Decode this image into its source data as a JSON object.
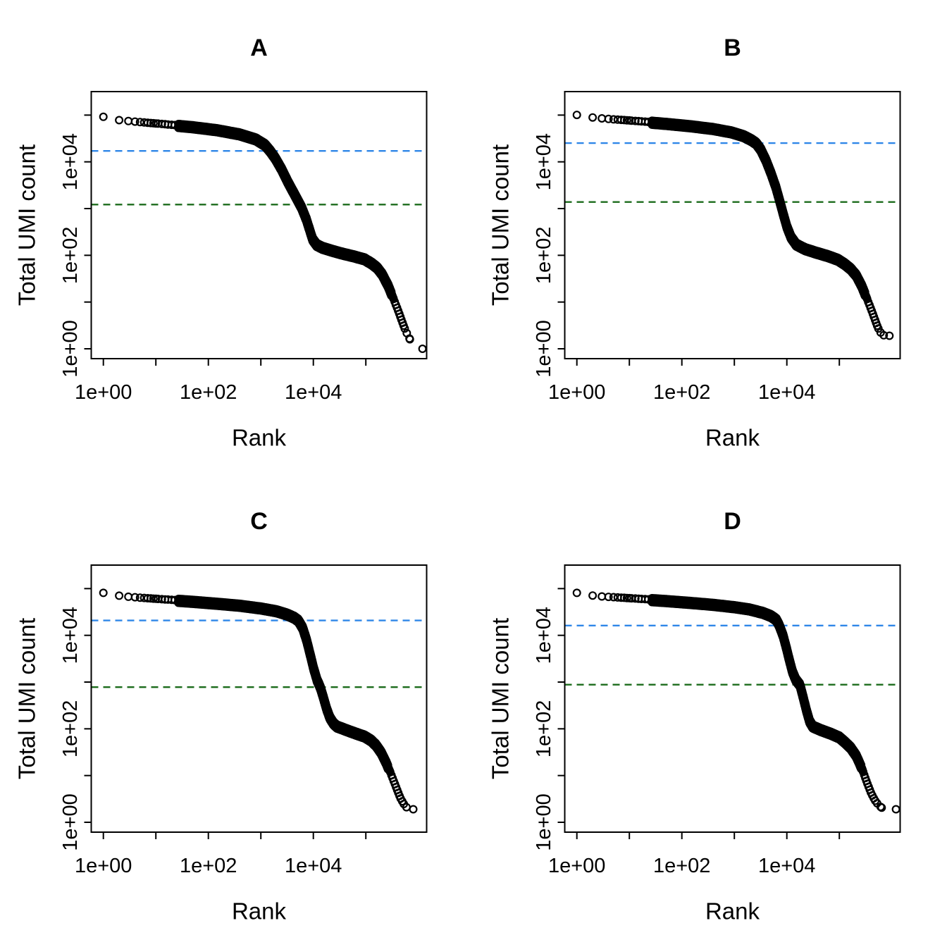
{
  "figure": {
    "background": "#ffffff",
    "layout": "2x2 grid of barcode rank plots"
  },
  "axes": {
    "x_label": "Rank",
    "y_label": "Total UMI count",
    "x_scale": "log10",
    "y_scale": "log10",
    "x_tick_labels": [
      "1e+00",
      "",
      "1e+02",
      "",
      "1e+04",
      ""
    ],
    "y_tick_labels": [
      "1e+00",
      "",
      "1e+02",
      "",
      "1e+04",
      ""
    ]
  },
  "colors": {
    "points": "#000000",
    "axis": "#000000",
    "knee_line": "#2E86E8",
    "inflection_line": "#1B6B1B"
  },
  "line_style": "dashed",
  "chart_data": [
    {
      "type": "scatter",
      "panel": "A",
      "title": "A",
      "xlabel": "Rank",
      "ylabel": "Total UMI count",
      "xlim": [
        0.6,
        1500000
      ],
      "ylim": [
        0.6,
        320000
      ],
      "knee": 17100,
      "inflection": 1220,
      "points": [
        [
          1,
          92000
        ],
        [
          2,
          78000
        ],
        [
          3,
          74500
        ],
        [
          5,
          71000
        ],
        [
          9,
          67000
        ],
        [
          20,
          62000
        ],
        [
          50,
          56500
        ],
        [
          150,
          48500
        ],
        [
          400,
          39500
        ],
        [
          800,
          31000
        ],
        [
          1200,
          23500
        ],
        [
          1500,
          17500
        ],
        [
          1900,
          12000
        ],
        [
          2500,
          7000
        ],
        [
          3300,
          3700
        ],
        [
          4500,
          1950
        ],
        [
          6000,
          1060
        ],
        [
          7400,
          590
        ],
        [
          8700,
          330
        ],
        [
          9700,
          225
        ],
        [
          11500,
          172
        ],
        [
          15000,
          148
        ],
        [
          22000,
          130
        ],
        [
          35000,
          112
        ],
        [
          60000,
          97
        ],
        [
          95000,
          84
        ],
        [
          130000,
          68
        ],
        [
          165000,
          55
        ],
        [
          205000,
          40
        ],
        [
          265000,
          23
        ],
        [
          335000,
          12
        ],
        [
          425000,
          6
        ],
        [
          505000,
          3.5
        ],
        [
          565000,
          2.5
        ],
        [
          625000,
          2.0
        ],
        [
          690000,
          1.6
        ],
        [
          1200000,
          1.0
        ]
      ]
    },
    {
      "type": "scatter",
      "panel": "B",
      "title": "B",
      "xlabel": "Rank",
      "ylabel": "Total UMI count",
      "xlim": [
        0.6,
        1500000
      ],
      "ylim": [
        0.6,
        320000
      ],
      "knee": 25200,
      "inflection": 1380,
      "points": [
        [
          1,
          101000
        ],
        [
          2,
          89000
        ],
        [
          3,
          85000
        ],
        [
          5,
          81000
        ],
        [
          9,
          77500
        ],
        [
          20,
          72500
        ],
        [
          50,
          66500
        ],
        [
          150,
          59000
        ],
        [
          400,
          51500
        ],
        [
          900,
          43500
        ],
        [
          1500,
          36500
        ],
        [
          2100,
          30000
        ],
        [
          2600,
          25500
        ],
        [
          3200,
          18500
        ],
        [
          4000,
          11000
        ],
        [
          5000,
          5800
        ],
        [
          6200,
          2900
        ],
        [
          7300,
          1500
        ],
        [
          8500,
          800
        ],
        [
          10000,
          420
        ],
        [
          12000,
          250
        ],
        [
          15000,
          175
        ],
        [
          22000,
          140
        ],
        [
          35000,
          118
        ],
        [
          60000,
          99
        ],
        [
          95000,
          82
        ],
        [
          130000,
          65
        ],
        [
          165000,
          52
        ],
        [
          210000,
          38
        ],
        [
          270000,
          22
        ],
        [
          340000,
          11.5
        ],
        [
          430000,
          5.8
        ],
        [
          510000,
          3.4
        ],
        [
          570000,
          2.5
        ],
        [
          635000,
          2.1
        ],
        [
          700000,
          1.95
        ],
        [
          900000,
          1.9
        ]
      ]
    },
    {
      "type": "scatter",
      "panel": "C",
      "title": "C",
      "xlabel": "Rank",
      "ylabel": "Total UMI count",
      "xlim": [
        0.6,
        1500000
      ],
      "ylim": [
        0.6,
        320000
      ],
      "knee": 20800,
      "inflection": 780,
      "points": [
        [
          1,
          81000
        ],
        [
          2,
          70500
        ],
        [
          3,
          67000
        ],
        [
          5,
          64000
        ],
        [
          9,
          61000
        ],
        [
          20,
          57500
        ],
        [
          50,
          53500
        ],
        [
          150,
          48500
        ],
        [
          400,
          44000
        ],
        [
          1000,
          38500
        ],
        [
          2000,
          33500
        ],
        [
          3200,
          28500
        ],
        [
          4300,
          24500
        ],
        [
          5200,
          21000
        ],
        [
          6300,
          14500
        ],
        [
          7500,
          7800
        ],
        [
          8700,
          4000
        ],
        [
          10000,
          2100
        ],
        [
          11700,
          1150
        ],
        [
          13600,
          780
        ],
        [
          15600,
          470
        ],
        [
          17800,
          280
        ],
        [
          20500,
          180
        ],
        [
          24000,
          135
        ],
        [
          28000,
          115
        ],
        [
          42000,
          97
        ],
        [
          65000,
          81
        ],
        [
          95000,
          70
        ],
        [
          125000,
          58
        ],
        [
          155000,
          46
        ],
        [
          195000,
          32
        ],
        [
          245000,
          19
        ],
        [
          305000,
          10.5
        ],
        [
          385000,
          5.3
        ],
        [
          455000,
          3.3
        ],
        [
          525000,
          2.5
        ],
        [
          595000,
          2.1
        ],
        [
          800000,
          1.9
        ]
      ]
    },
    {
      "type": "scatter",
      "panel": "D",
      "title": "D",
      "xlabel": "Rank",
      "ylabel": "Total UMI count",
      "xlim": [
        0.6,
        1500000
      ],
      "ylim": [
        0.6,
        320000
      ],
      "knee": 16200,
      "inflection": 880,
      "points": [
        [
          1,
          81000
        ],
        [
          2,
          71000
        ],
        [
          3,
          68000
        ],
        [
          5,
          65500
        ],
        [
          9,
          63000
        ],
        [
          20,
          59500
        ],
        [
          50,
          55500
        ],
        [
          150,
          50500
        ],
        [
          400,
          46000
        ],
        [
          1000,
          41000
        ],
        [
          2000,
          36500
        ],
        [
          3500,
          31000
        ],
        [
          5000,
          26500
        ],
        [
          6300,
          22000
        ],
        [
          7200,
          16500
        ],
        [
          8500,
          10000
        ],
        [
          9800,
          5500
        ],
        [
          11200,
          3000
        ],
        [
          12800,
          1700
        ],
        [
          14800,
          1150
        ],
        [
          17800,
          880
        ],
        [
          20500,
          480
        ],
        [
          23500,
          260
        ],
        [
          27000,
          150
        ],
        [
          31000,
          115
        ],
        [
          45000,
          96
        ],
        [
          70000,
          80
        ],
        [
          100000,
          67
        ],
        [
          130000,
          52
        ],
        [
          165000,
          40
        ],
        [
          210000,
          27
        ],
        [
          265000,
          15
        ],
        [
          330000,
          7.5
        ],
        [
          400000,
          4.3
        ],
        [
          470000,
          3.0
        ],
        [
          545000,
          2.4
        ],
        [
          640000,
          2.05
        ],
        [
          1200000,
          1.9
        ]
      ]
    }
  ]
}
